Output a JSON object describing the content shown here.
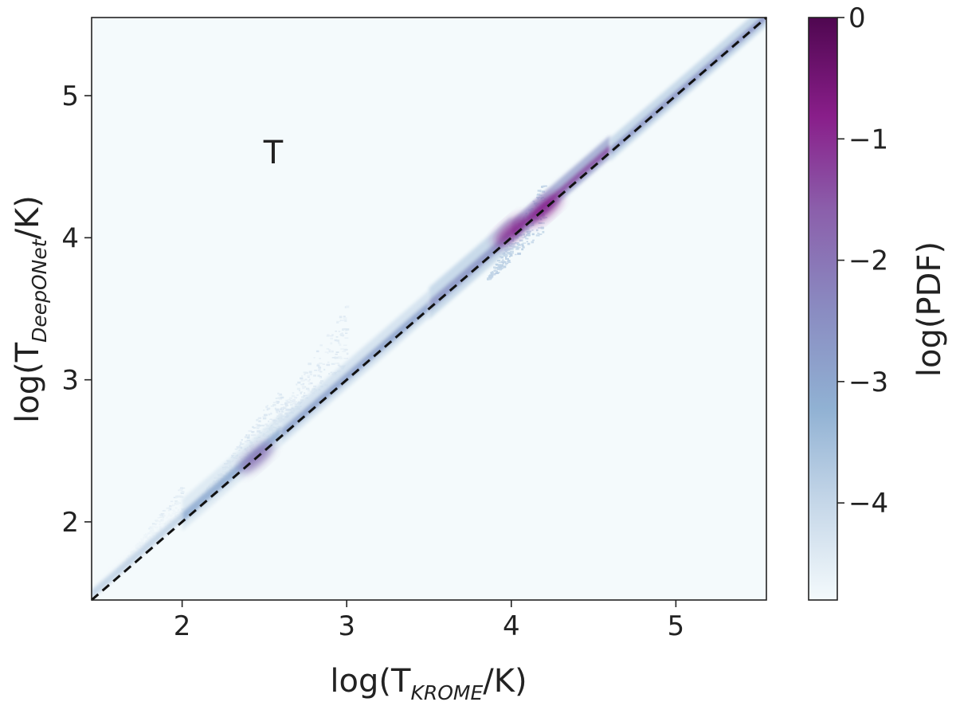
{
  "chart_data": {
    "type": "heatmap",
    "title": "",
    "annotation": "T",
    "xlabel": {
      "pre": "log(T",
      "sub": "KROME",
      "post": "/K)"
    },
    "ylabel": {
      "pre": "log(T",
      "sub": "DeepONet",
      "post": "/K)"
    },
    "xlim": [
      1.45,
      5.55
    ],
    "ylim": [
      1.45,
      5.55
    ],
    "x_ticks": [
      2,
      3,
      4,
      5
    ],
    "y_ticks": [
      2,
      3,
      4,
      5
    ],
    "x_tick_labels": [
      "2",
      "3",
      "4",
      "5"
    ],
    "y_tick_labels": [
      "2",
      "3",
      "4",
      "5"
    ],
    "reference_line": {
      "style": "dashed",
      "color": "#111111",
      "from": [
        1.45,
        1.45
      ],
      "to": [
        5.55,
        5.55
      ]
    },
    "density_bands": [
      {
        "x": [
          1.45,
          2.0
        ],
        "spread": 0.06,
        "offset": 0.03,
        "level": -3.9
      },
      {
        "x": [
          2.0,
          2.6
        ],
        "spread": 0.07,
        "offset": 0.02,
        "level": -3.1
      },
      {
        "x": [
          2.6,
          3.5
        ],
        "spread": 0.06,
        "offset": 0.01,
        "level": -2.9
      },
      {
        "x": [
          3.5,
          4.0
        ],
        "spread": 0.07,
        "offset": 0.01,
        "level": -2.6
      },
      {
        "x": [
          4.0,
          4.6
        ],
        "spread": 0.05,
        "offset": 0.02,
        "level": -1.4
      },
      {
        "x": [
          4.6,
          5.55
        ],
        "spread": 0.05,
        "offset": 0.0,
        "level": -2.6
      }
    ],
    "scatter_regions": [
      {
        "x": [
          1.6,
          2.0
        ],
        "y_above": [
          0.05,
          0.25
        ],
        "level": -4.3
      },
      {
        "x": [
          2.1,
          2.6
        ],
        "y_above": [
          0.05,
          0.35
        ],
        "level": -4.2
      },
      {
        "x": [
          2.5,
          3.0
        ],
        "y_above": [
          0.1,
          0.55
        ],
        "level": -4.3
      },
      {
        "x": [
          3.85,
          4.2
        ],
        "y_above": [
          -0.15,
          0.2
        ],
        "level": -3.4
      }
    ],
    "hotspots": [
      {
        "x": 2.45,
        "y": 2.45,
        "level": -1.9
      },
      {
        "x": 4.0,
        "y": 4.05,
        "level": -0.9
      },
      {
        "x": 4.2,
        "y": 4.2,
        "level": -0.8
      }
    ],
    "colorbar": {
      "label": "log(PDF)",
      "min": -4.8,
      "max": 0,
      "ticks": [
        0,
        -1,
        -2,
        -3,
        -4
      ],
      "tick_labels": [
        "0",
        "−1",
        "−2",
        "−3",
        "−4"
      ],
      "colormap": [
        "#f4fafc",
        "#c4d6e8",
        "#90b1d3",
        "#8a8bc1",
        "#8b5fab",
        "#891e8a",
        "#4f0750"
      ]
    },
    "background_color": "#f4fafc",
    "grid": false
  }
}
